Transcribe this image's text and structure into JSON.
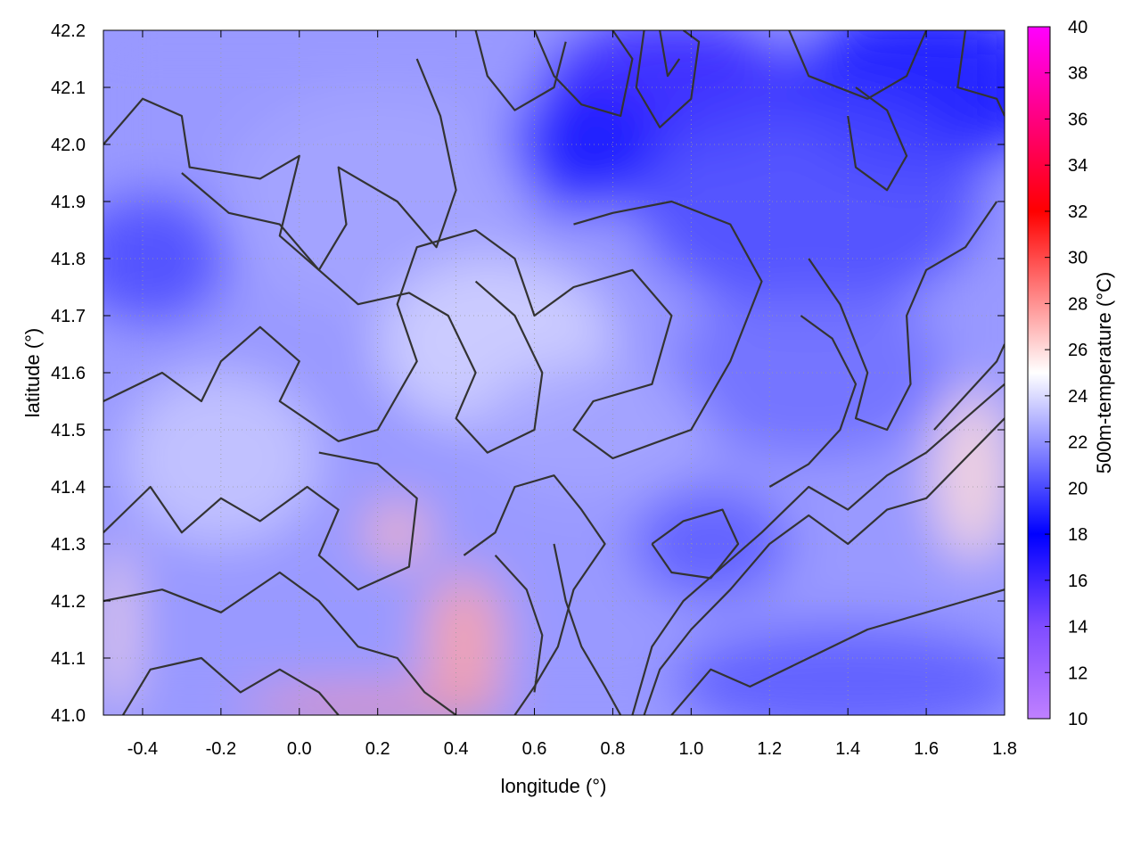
{
  "chart_data": {
    "type": "heatmap",
    "title": "",
    "xlabel": "longitude (°)",
    "ylabel": "latitude (°)",
    "colorbar_label": "500m-temperature (°C)",
    "xlim": [
      -0.5,
      1.8
    ],
    "ylim": [
      41.0,
      42.2
    ],
    "x_ticks": [
      -0.4,
      -0.2,
      0.0,
      0.2,
      0.4,
      0.6,
      0.8,
      1.0,
      1.2,
      1.4,
      1.6,
      1.8
    ],
    "x_tick_labels": [
      "-0.4",
      "-0.2",
      "0.0",
      "0.2",
      "0.4",
      "0.6",
      "0.8",
      "1.0",
      "1.2",
      "1.4",
      "1.6",
      "1.8"
    ],
    "y_ticks": [
      41.0,
      41.1,
      41.2,
      41.3,
      41.4,
      41.5,
      41.6,
      41.7,
      41.8,
      41.9,
      42.0,
      42.1,
      42.2
    ],
    "y_tick_labels": [
      "41.0",
      "41.1",
      "41.2",
      "41.3",
      "41.4",
      "41.5",
      "41.6",
      "41.7",
      "41.8",
      "41.9",
      "42.0",
      "42.1",
      "42.2"
    ],
    "colorbar_range": [
      10,
      40
    ],
    "colorbar_ticks": [
      10,
      12,
      14,
      16,
      18,
      20,
      22,
      24,
      26,
      28,
      30,
      32,
      34,
      36,
      38,
      40
    ],
    "colorbar_tick_labels": [
      "10",
      "12",
      "14",
      "16",
      "18",
      "20",
      "22",
      "24",
      "26",
      "28",
      "30",
      "32",
      "34",
      "36",
      "38",
      "40"
    ],
    "colormap": [
      {
        "value": 10,
        "color": "#bf80ff"
      },
      {
        "value": 14,
        "color": "#7f4cff"
      },
      {
        "value": 18,
        "color": "#0000ff"
      },
      {
        "value": 25,
        "color": "#ffffff"
      },
      {
        "value": 32,
        "color": "#ff0000"
      },
      {
        "value": 40,
        "color": "#ff00ff"
      }
    ],
    "grid": true,
    "field_blobs": [
      {
        "lon": 0.95,
        "lat": 42.1,
        "rlon": 0.35,
        "rlat": 0.12,
        "temp": 16.5
      },
      {
        "lon": 0.72,
        "lat": 41.98,
        "rlon": 0.22,
        "rlat": 0.1,
        "temp": 18.5
      },
      {
        "lon": 1.6,
        "lat": 42.1,
        "rlon": 0.35,
        "rlat": 0.15,
        "temp": 18.5
      },
      {
        "lon": 1.3,
        "lat": 41.9,
        "rlon": 0.45,
        "rlat": 0.2,
        "temp": 20.0
      },
      {
        "lon": -0.38,
        "lat": 41.8,
        "rlon": 0.2,
        "rlat": 0.12,
        "temp": 20.0
      },
      {
        "lon": 1.3,
        "lat": 41.6,
        "rlon": 0.35,
        "rlat": 0.15,
        "temp": 21.0
      },
      {
        "lon": 1.05,
        "lat": 41.3,
        "rlon": 0.2,
        "rlat": 0.1,
        "temp": 20.5
      },
      {
        "lon": 1.4,
        "lat": 41.06,
        "rlon": 0.45,
        "rlat": 0.1,
        "temp": 20.5
      },
      {
        "lon": 0.2,
        "lat": 41.9,
        "rlon": 0.4,
        "rlat": 0.2,
        "temp": 22.5
      },
      {
        "lon": 0.5,
        "lat": 41.65,
        "rlon": 0.3,
        "rlat": 0.15,
        "temp": 23.8
      },
      {
        "lon": -0.2,
        "lat": 41.45,
        "rlon": 0.25,
        "rlat": 0.15,
        "temp": 23.5
      },
      {
        "lon": 0.25,
        "lat": 41.32,
        "rlon": 0.08,
        "rlat": 0.05,
        "temp": 27.0
      },
      {
        "lon": 0.42,
        "lat": 41.13,
        "rlon": 0.1,
        "rlat": 0.12,
        "temp": 27.5
      },
      {
        "lon": 0.2,
        "lat": 41.015,
        "rlon": 0.35,
        "rlat": 0.025,
        "temp": 28.0
      },
      {
        "lon": 1.72,
        "lat": 41.42,
        "rlon": 0.1,
        "rlat": 0.15,
        "temp": 26.0
      },
      {
        "lon": -0.47,
        "lat": 41.15,
        "rlon": 0.04,
        "rlat": 0.15,
        "temp": 26.0
      },
      {
        "lon": 0.75,
        "lat": 41.5,
        "rlon": 0.3,
        "rlat": 0.12,
        "temp": 22.5
      }
    ],
    "contours": [
      [
        [
          -0.5,
          42.0
        ],
        [
          -0.4,
          42.08
        ],
        [
          -0.3,
          42.05
        ],
        [
          -0.28,
          41.96
        ],
        [
          -0.1,
          41.94
        ],
        [
          0.0,
          41.98
        ],
        [
          -0.05,
          41.84
        ],
        [
          0.05,
          41.78
        ],
        [
          0.12,
          41.86
        ],
        [
          0.1,
          41.96
        ],
        [
          0.25,
          41.9
        ],
        [
          0.35,
          41.82
        ],
        [
          0.4,
          41.92
        ],
        [
          0.36,
          42.05
        ],
        [
          0.3,
          42.15
        ]
      ],
      [
        [
          0.45,
          42.2
        ],
        [
          0.48,
          42.12
        ],
        [
          0.55,
          42.06
        ],
        [
          0.65,
          42.1
        ],
        [
          0.68,
          42.18
        ]
      ],
      [
        [
          0.6,
          42.2
        ],
        [
          0.65,
          42.12
        ],
        [
          0.72,
          42.07
        ],
        [
          0.82,
          42.05
        ],
        [
          0.85,
          42.15
        ],
        [
          0.8,
          42.2
        ]
      ],
      [
        [
          0.88,
          42.2
        ],
        [
          0.86,
          42.1
        ],
        [
          0.92,
          42.03
        ],
        [
          1.0,
          42.08
        ],
        [
          1.02,
          42.18
        ],
        [
          0.98,
          42.2
        ]
      ],
      [
        [
          0.92,
          42.2
        ],
        [
          0.94,
          42.12
        ],
        [
          0.97,
          42.15
        ]
      ],
      [
        [
          1.25,
          42.2
        ],
        [
          1.3,
          42.12
        ],
        [
          1.45,
          42.08
        ],
        [
          1.55,
          42.12
        ],
        [
          1.6,
          42.2
        ]
      ],
      [
        [
          1.7,
          42.2
        ],
        [
          1.68,
          42.1
        ],
        [
          1.78,
          42.08
        ],
        [
          1.8,
          42.05
        ]
      ],
      [
        [
          -0.5,
          41.55
        ],
        [
          -0.35,
          41.6
        ],
        [
          -0.25,
          41.55
        ],
        [
          -0.2,
          41.62
        ],
        [
          -0.1,
          41.68
        ],
        [
          0.0,
          41.62
        ],
        [
          -0.05,
          41.55
        ],
        [
          0.1,
          41.48
        ],
        [
          0.2,
          41.5
        ],
        [
          0.3,
          41.62
        ],
        [
          0.25,
          41.72
        ],
        [
          0.3,
          41.82
        ],
        [
          0.45,
          41.85
        ],
        [
          0.55,
          41.8
        ],
        [
          0.6,
          41.7
        ],
        [
          0.7,
          41.75
        ],
        [
          0.85,
          41.78
        ],
        [
          0.95,
          41.7
        ],
        [
          0.9,
          41.58
        ],
        [
          0.75,
          41.55
        ],
        [
          0.7,
          41.5
        ],
        [
          0.8,
          41.45
        ],
        [
          1.0,
          41.5
        ],
        [
          1.1,
          41.62
        ],
        [
          1.18,
          41.76
        ],
        [
          1.1,
          41.86
        ],
        [
          0.95,
          41.9
        ],
        [
          0.8,
          41.88
        ],
        [
          0.7,
          41.86
        ]
      ],
      [
        [
          -0.3,
          41.95
        ],
        [
          -0.18,
          41.88
        ],
        [
          -0.05,
          41.86
        ],
        [
          0.05,
          41.78
        ],
        [
          0.15,
          41.72
        ],
        [
          0.28,
          41.74
        ],
        [
          0.38,
          41.7
        ],
        [
          0.45,
          41.6
        ],
        [
          0.4,
          41.52
        ],
        [
          0.48,
          41.46
        ],
        [
          0.6,
          41.5
        ],
        [
          0.62,
          41.6
        ],
        [
          0.55,
          41.7
        ],
        [
          0.45,
          41.76
        ]
      ],
      [
        [
          -0.5,
          41.32
        ],
        [
          -0.38,
          41.4
        ],
        [
          -0.3,
          41.32
        ],
        [
          -0.2,
          41.38
        ],
        [
          -0.1,
          41.34
        ],
        [
          0.02,
          41.4
        ],
        [
          0.1,
          41.36
        ],
        [
          0.05,
          41.28
        ],
        [
          0.15,
          41.22
        ],
        [
          0.28,
          41.26
        ],
        [
          0.3,
          41.38
        ],
        [
          0.2,
          41.44
        ],
        [
          0.05,
          41.46
        ]
      ],
      [
        [
          -0.5,
          41.2
        ],
        [
          -0.35,
          41.22
        ],
        [
          -0.2,
          41.18
        ],
        [
          -0.05,
          41.25
        ],
        [
          0.05,
          41.2
        ],
        [
          0.15,
          41.12
        ],
        [
          0.25,
          41.1
        ],
        [
          0.32,
          41.04
        ],
        [
          0.4,
          41.0
        ]
      ],
      [
        [
          -0.45,
          41.0
        ],
        [
          -0.38,
          41.08
        ],
        [
          -0.25,
          41.1
        ],
        [
          -0.15,
          41.04
        ],
        [
          -0.05,
          41.08
        ],
        [
          0.05,
          41.04
        ],
        [
          0.1,
          41.0
        ]
      ],
      [
        [
          0.42,
          41.28
        ],
        [
          0.5,
          41.32
        ],
        [
          0.55,
          41.4
        ],
        [
          0.65,
          41.42
        ],
        [
          0.72,
          41.36
        ],
        [
          0.78,
          41.3
        ],
        [
          0.7,
          41.22
        ],
        [
          0.66,
          41.12
        ],
        [
          0.6,
          41.05
        ],
        [
          0.55,
          41.0
        ]
      ],
      [
        [
          0.5,
          41.28
        ],
        [
          0.58,
          41.22
        ],
        [
          0.62,
          41.14
        ],
        [
          0.6,
          41.04
        ]
      ],
      [
        [
          0.65,
          41.3
        ],
        [
          0.68,
          41.2
        ],
        [
          0.72,
          41.12
        ],
        [
          0.78,
          41.05
        ],
        [
          0.82,
          41.0
        ]
      ],
      [
        [
          0.88,
          41.0
        ],
        [
          0.92,
          41.08
        ],
        [
          1.0,
          41.15
        ],
        [
          1.1,
          41.22
        ],
        [
          1.2,
          41.3
        ],
        [
          1.3,
          41.35
        ],
        [
          1.4,
          41.3
        ],
        [
          1.5,
          41.36
        ],
        [
          1.6,
          41.38
        ],
        [
          1.7,
          41.45
        ],
        [
          1.8,
          41.52
        ]
      ],
      [
        [
          0.85,
          41.0
        ],
        [
          0.9,
          41.12
        ],
        [
          0.98,
          41.2
        ],
        [
          1.08,
          41.26
        ],
        [
          1.18,
          41.32
        ],
        [
          1.3,
          41.4
        ],
        [
          1.4,
          41.36
        ],
        [
          1.5,
          41.42
        ],
        [
          1.6,
          41.46
        ],
        [
          1.7,
          41.52
        ],
        [
          1.8,
          41.58
        ]
      ],
      [
        [
          0.95,
          41.0
        ],
        [
          1.05,
          41.08
        ],
        [
          1.15,
          41.05
        ],
        [
          1.3,
          41.1
        ],
        [
          1.45,
          41.15
        ],
        [
          1.6,
          41.18
        ],
        [
          1.7,
          41.2
        ],
        [
          1.8,
          41.22
        ]
      ],
      [
        [
          0.9,
          41.3
        ],
        [
          0.98,
          41.34
        ],
        [
          1.08,
          41.36
        ],
        [
          1.12,
          41.3
        ],
        [
          1.05,
          41.24
        ],
        [
          0.95,
          41.25
        ],
        [
          0.9,
          41.3
        ]
      ],
      [
        [
          1.3,
          41.8
        ],
        [
          1.38,
          41.72
        ],
        [
          1.45,
          41.6
        ],
        [
          1.42,
          41.52
        ],
        [
          1.5,
          41.5
        ],
        [
          1.56,
          41.58
        ],
        [
          1.55,
          41.7
        ],
        [
          1.6,
          41.78
        ],
        [
          1.7,
          41.82
        ],
        [
          1.78,
          41.9
        ]
      ],
      [
        [
          1.2,
          41.4
        ],
        [
          1.3,
          41.44
        ],
        [
          1.38,
          41.5
        ],
        [
          1.42,
          41.58
        ],
        [
          1.36,
          41.66
        ],
        [
          1.28,
          41.7
        ]
      ],
      [
        [
          1.62,
          41.5
        ],
        [
          1.7,
          41.56
        ],
        [
          1.78,
          41.62
        ],
        [
          1.8,
          41.65
        ]
      ],
      [
        [
          1.4,
          42.05
        ],
        [
          1.42,
          41.96
        ],
        [
          1.5,
          41.92
        ],
        [
          1.55,
          41.98
        ],
        [
          1.5,
          42.06
        ],
        [
          1.42,
          42.1
        ]
      ]
    ]
  }
}
